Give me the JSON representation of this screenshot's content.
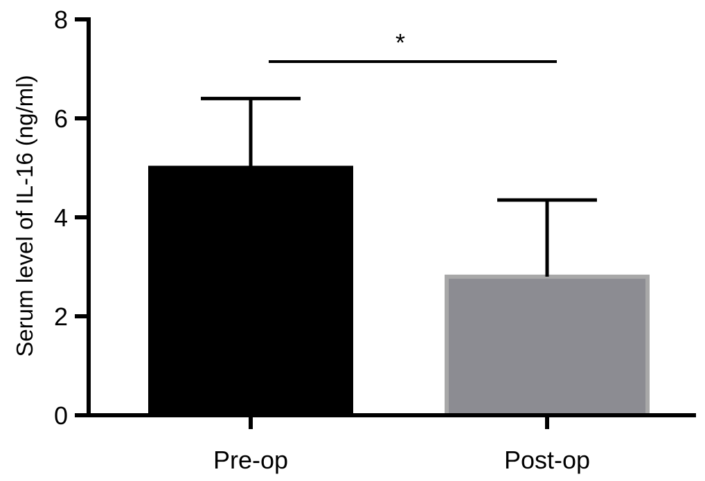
{
  "chart_data": {
    "type": "bar",
    "categories": [
      "Pre-op",
      "Post-op"
    ],
    "values": [
      5.0,
      2.8
    ],
    "error_upper": [
      6.4,
      4.35
    ],
    "bar_colors": [
      "#000000",
      "#8c8c92"
    ],
    "bar_edge_colors": [
      "#000000",
      "#a8a8a8"
    ],
    "ylabel": "Serum level of IL-16 (ng/ml)",
    "xlabel": "",
    "ylim": [
      0,
      8
    ],
    "yticks": [
      "0",
      "2",
      "4",
      "6",
      "8"
    ],
    "grid": false,
    "significance": {
      "between": [
        "Pre-op",
        "Post-op"
      ],
      "label": "*"
    }
  }
}
